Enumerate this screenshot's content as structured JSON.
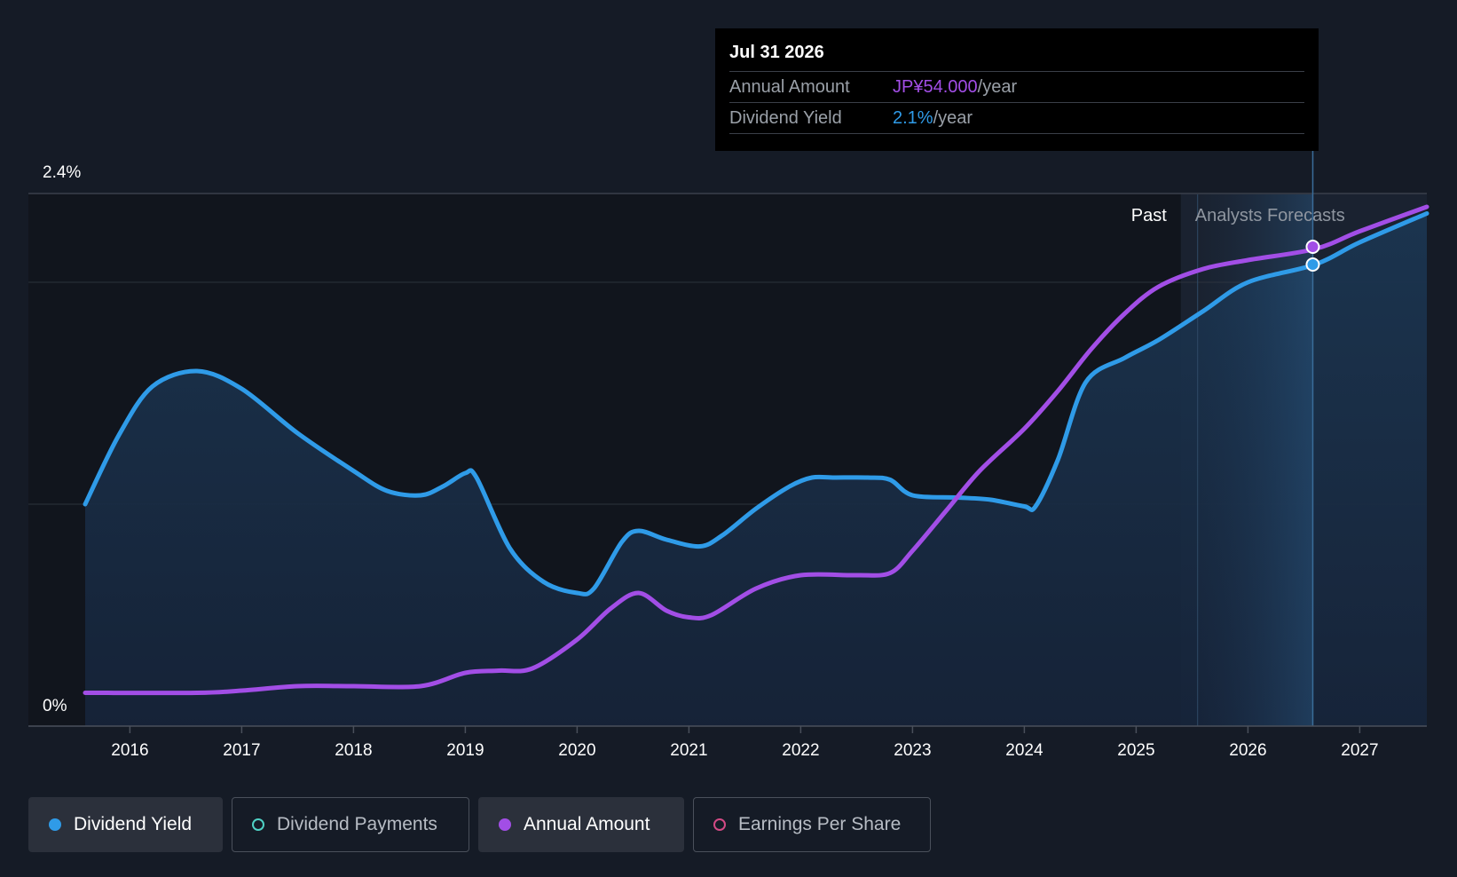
{
  "chart_data": {
    "type": "line",
    "y_axis": {
      "top_label": "2.4%",
      "bottom_label": "0%",
      "ylim": [
        0,
        2.4
      ],
      "gridlines": [
        1.0,
        2.0
      ]
    },
    "x_axis": {
      "ticks": [
        "2016",
        "2017",
        "2018",
        "2019",
        "2020",
        "2021",
        "2022",
        "2023",
        "2024",
        "2025",
        "2026",
        "2027"
      ],
      "xlim": [
        2015.6,
        2027.6
      ]
    },
    "regions": {
      "past_label": "Past",
      "forecast_label": "Analysts Forecasts",
      "forecast_start": 2025.4
    },
    "series": [
      {
        "name": "Dividend Yield",
        "color": "#2f9be8",
        "filled": true,
        "x": [
          2015.6,
          2015.9,
          2016.2,
          2016.6,
          2017.0,
          2017.5,
          2018.0,
          2018.3,
          2018.6,
          2018.8,
          2019.0,
          2019.1,
          2019.4,
          2019.7,
          2020.0,
          2020.15,
          2020.4,
          2020.55,
          2020.8,
          2021.1,
          2021.3,
          2021.6,
          2021.9,
          2022.1,
          2022.3,
          2022.6,
          2022.8,
          2023.0,
          2023.4,
          2023.7,
          2024.0,
          2024.1,
          2024.3,
          2024.55,
          2024.9,
          2025.2,
          2025.6,
          2026.0,
          2026.6,
          2027.0,
          2027.6
        ],
        "values": [
          1.0,
          1.31,
          1.53,
          1.6,
          1.52,
          1.32,
          1.15,
          1.06,
          1.04,
          1.08,
          1.14,
          1.12,
          0.8,
          0.65,
          0.6,
          0.62,
          0.83,
          0.88,
          0.84,
          0.81,
          0.86,
          0.98,
          1.08,
          1.12,
          1.12,
          1.12,
          1.11,
          1.04,
          1.03,
          1.02,
          0.99,
          0.99,
          1.2,
          1.55,
          1.66,
          1.74,
          1.87,
          2.0,
          2.08,
          2.18,
          2.31
        ]
      },
      {
        "name": "Annual Amount",
        "color": "#a24ee6",
        "filled": false,
        "x": [
          2015.6,
          2016.6,
          2017.0,
          2017.5,
          2018.0,
          2018.6,
          2019.0,
          2019.3,
          2019.6,
          2020.0,
          2020.3,
          2020.55,
          2020.8,
          2021.0,
          2021.2,
          2021.6,
          2022.0,
          2022.5,
          2022.8,
          2023.0,
          2023.3,
          2023.6,
          2024.0,
          2024.3,
          2024.6,
          2024.9,
          2025.2,
          2025.6,
          2026.0,
          2026.6,
          2027.0,
          2027.6
        ],
        "values": [
          0.15,
          0.15,
          0.16,
          0.18,
          0.18,
          0.18,
          0.24,
          0.25,
          0.26,
          0.39,
          0.53,
          0.6,
          0.52,
          0.49,
          0.5,
          0.62,
          0.68,
          0.68,
          0.69,
          0.79,
          0.97,
          1.15,
          1.34,
          1.51,
          1.7,
          1.86,
          1.98,
          2.06,
          2.1,
          2.15,
          2.23,
          2.34
        ]
      }
    ],
    "highlight": {
      "x": 2026.58,
      "yield_value": 2.08,
      "amount_value": 2.16
    }
  },
  "tooltip": {
    "date": "Jul 31 2026",
    "rows": [
      {
        "label": "Annual Amount",
        "value": "JP¥54.000",
        "unit": "/year",
        "color": "#a24ee6"
      },
      {
        "label": "Dividend Yield",
        "value": "2.1%",
        "unit": "/year",
        "color": "#2f9be8"
      }
    ]
  },
  "legend": [
    {
      "label": "Dividend Yield",
      "color": "#2f9be8",
      "active": true,
      "filled": true
    },
    {
      "label": "Dividend Payments",
      "color": "#4fd1c5",
      "active": false,
      "filled": false
    },
    {
      "label": "Annual Amount",
      "color": "#a24ee6",
      "active": true,
      "filled": true
    },
    {
      "label": "Earnings Per Share",
      "color": "#d34a85",
      "active": false,
      "filled": false
    }
  ]
}
